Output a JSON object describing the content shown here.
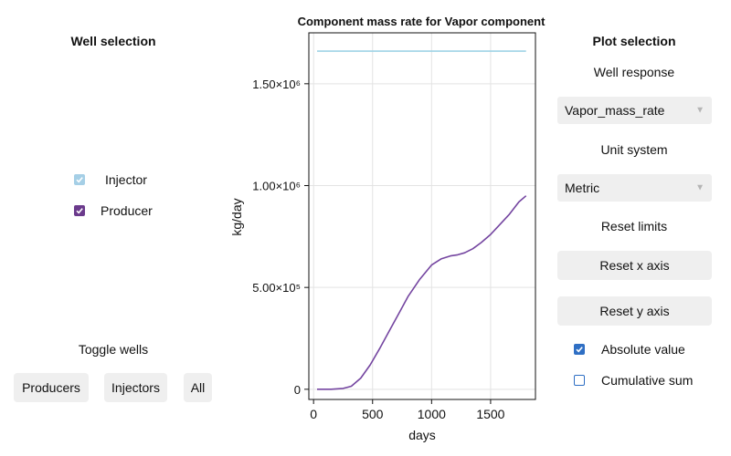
{
  "left_panel": {
    "title": "Well selection",
    "wells": [
      {
        "label": "Injector",
        "checked": true,
        "color": "#a5cfe6"
      },
      {
        "label": "Producer",
        "checked": true,
        "color": "#6b3a8c"
      }
    ],
    "toggle_title": "Toggle wells",
    "buttons": {
      "producers": "Producers",
      "injectors": "Injectors",
      "all": "All"
    }
  },
  "right_panel": {
    "title": "Plot selection",
    "well_response_label": "Well response",
    "well_response_value": "Vapor_mass_rate",
    "unit_system_label": "Unit system",
    "unit_system_value": "Metric",
    "reset_limits_label": "Reset limits",
    "reset_x": "Reset x axis",
    "reset_y": "Reset y axis",
    "options": [
      {
        "label": "Absolute value",
        "checked": true
      },
      {
        "label": "Cumulative sum",
        "checked": false
      }
    ]
  },
  "icons": {
    "dropdown": "chevron-down-icon",
    "check": "check-icon"
  },
  "colors": {
    "checkbox_accent": "#2f6fc4",
    "injector": "#9ed3e6",
    "producer": "#7445a0"
  },
  "chart_data": {
    "type": "line",
    "title": "Component mass rate for Vapor component",
    "xlabel": "days",
    "ylabel": "kg/day",
    "xlim": [
      -40,
      1880
    ],
    "ylim": [
      -50000,
      1750000
    ],
    "x_ticks": [
      0,
      500,
      1000,
      1500
    ],
    "x_tick_labels": [
      "0",
      "500",
      "1000",
      "1500"
    ],
    "y_ticks": [
      0,
      500000,
      1000000,
      1500000
    ],
    "y_tick_labels": [
      "0",
      "5.00×10⁵",
      "1.00×10⁶",
      "1.50×10⁶"
    ],
    "grid": true,
    "series": [
      {
        "name": "Injector",
        "color": "#9ed3e6",
        "x": [
          30,
          1800
        ],
        "y": [
          1660000,
          1660000
        ]
      },
      {
        "name": "Producer",
        "color": "#7445a0",
        "x": [
          30,
          150,
          250,
          320,
          400,
          480,
          560,
          640,
          720,
          800,
          900,
          1000,
          1080,
          1160,
          1220,
          1280,
          1350,
          1420,
          1500,
          1580,
          1660,
          1740,
          1800
        ],
        "y": [
          0,
          0,
          4000,
          15000,
          55000,
          120000,
          200000,
          285000,
          370000,
          455000,
          540000,
          610000,
          640000,
          655000,
          660000,
          670000,
          690000,
          720000,
          760000,
          810000,
          860000,
          920000,
          950000
        ]
      }
    ]
  }
}
